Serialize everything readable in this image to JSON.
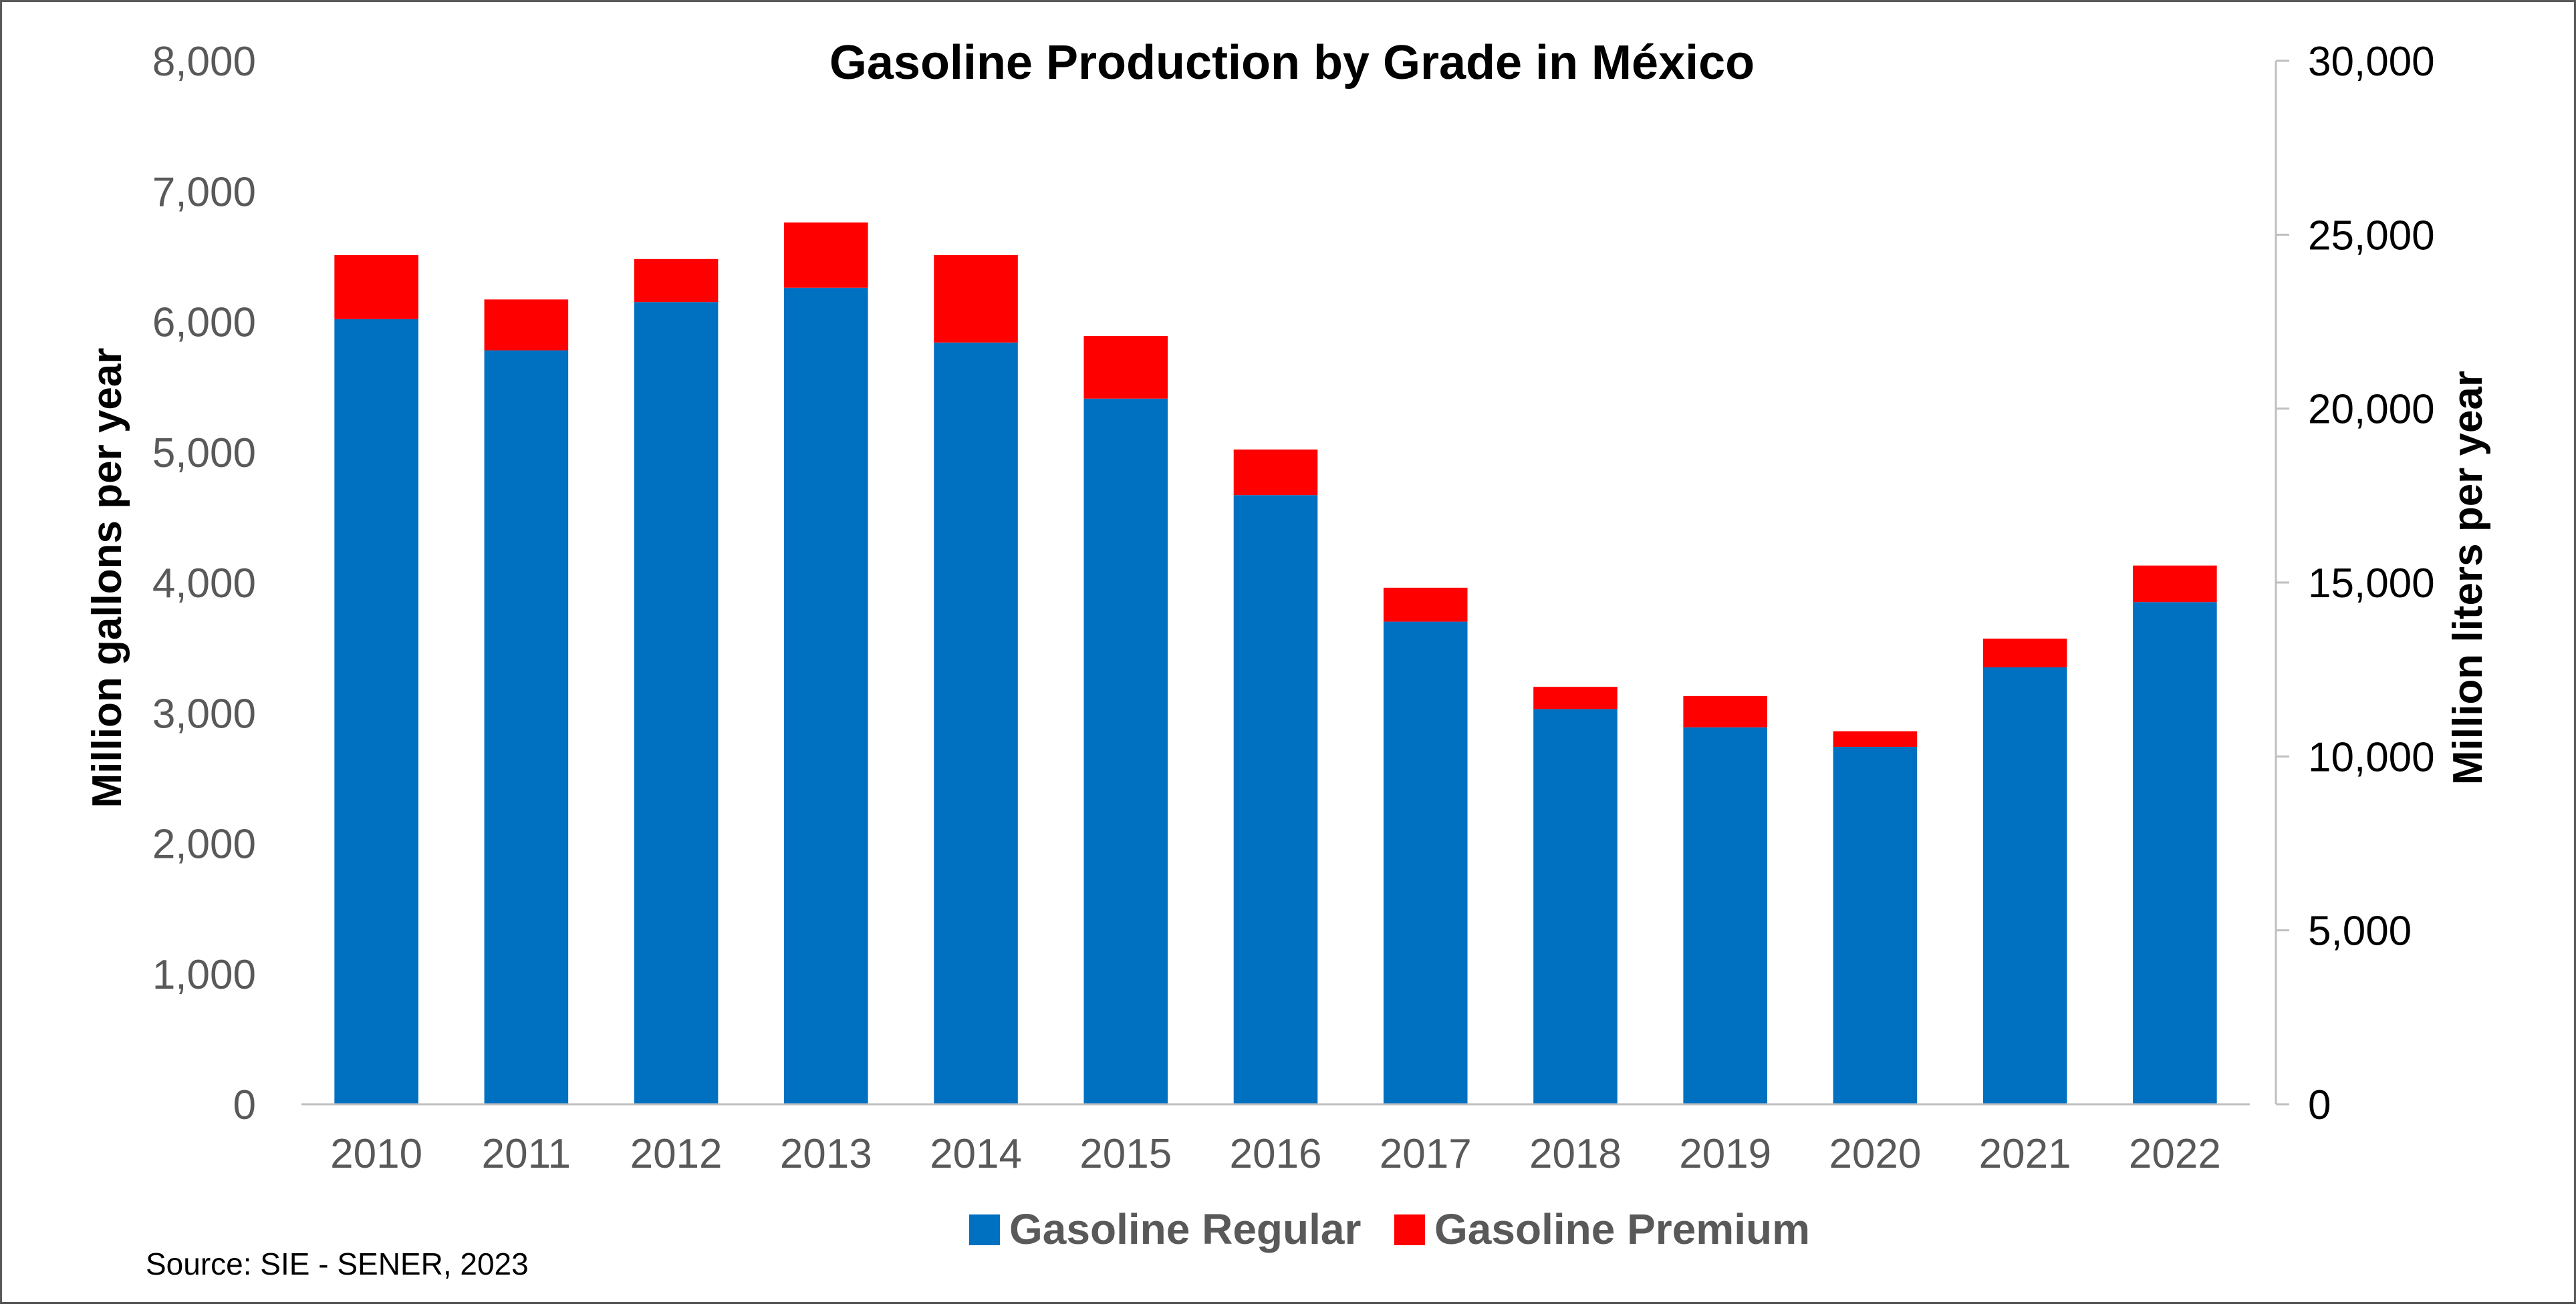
{
  "chart_data": {
    "type": "bar",
    "stacked": true,
    "title": "Gasoline Production by Grade in México",
    "source": "Source: SIE - SENER, 2023",
    "categories": [
      "2010",
      "2011",
      "2012",
      "2013",
      "2014",
      "2015",
      "2016",
      "2017",
      "2018",
      "2019",
      "2020",
      "2021",
      "2022"
    ],
    "series": [
      {
        "name": "Gasoline Regular",
        "color": "#0070C0",
        "values": [
          6020,
          5780,
          6150,
          6260,
          5840,
          5410,
          4670,
          3700,
          3030,
          2890,
          2740,
          3350,
          3850
        ]
      },
      {
        "name": "Gasoline Premium",
        "color": "#FF0000",
        "values": [
          490,
          390,
          330,
          500,
          670,
          480,
          350,
          260,
          170,
          240,
          120,
          220,
          280
        ]
      }
    ],
    "y_left": {
      "label": "Million gallons per year",
      "lim": [
        0,
        8000
      ],
      "ticks": [
        "0",
        "1,000",
        "2,000",
        "3,000",
        "4,000",
        "5,000",
        "6,000",
        "7,000",
        "8,000"
      ]
    },
    "y_right": {
      "label": "Million liters per year",
      "lim": [
        0,
        30000
      ],
      "ticks": [
        "0",
        "5,000",
        "10,000",
        "15,000",
        "20,000",
        "25,000",
        "30,000"
      ]
    },
    "grid": false,
    "legend": "bottom"
  }
}
